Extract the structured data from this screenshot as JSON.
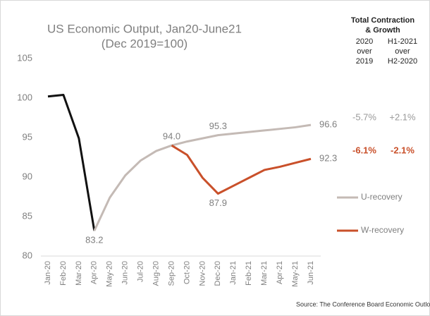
{
  "chart_data": {
    "type": "line",
    "title": "US Economic Output, Jan20-June21",
    "subtitle": "(Dec 2019=100)",
    "categories": [
      "Jan-20",
      "Feb-20",
      "Mar-20",
      "Apr-20",
      "May-20",
      "Jun-20",
      "Jul-20",
      "Aug-20",
      "Sep-20",
      "Oct-20",
      "Nov-20",
      "Dec-20",
      "Jan-21",
      "Feb-21",
      "Mar-21",
      "Apr-21",
      "May-21",
      "Jun-21"
    ],
    "series": [
      {
        "color": "#111111",
        "values": [
          100.2,
          100.4,
          94.9,
          83.2,
          null,
          null,
          null,
          null,
          null,
          null,
          null,
          null,
          null,
          null,
          null,
          null,
          null,
          null
        ]
      },
      {
        "name": "U-recovery",
        "color": "#c4bab5",
        "values": [
          null,
          null,
          null,
          83.2,
          87.4,
          90.2,
          92.1,
          93.3,
          94.0,
          94.5,
          94.9,
          95.3,
          95.5,
          95.7,
          95.9,
          96.1,
          96.3,
          96.6
        ],
        "value_labels": [
          null,
          null,
          null,
          "83.2",
          null,
          null,
          null,
          null,
          "94.0",
          null,
          null,
          "95.3",
          null,
          null,
          null,
          null,
          null,
          "96.6"
        ]
      },
      {
        "name": "W-recovery",
        "color": "#c9502a",
        "values": [
          null,
          null,
          null,
          null,
          null,
          null,
          null,
          null,
          94.0,
          92.8,
          89.9,
          87.9,
          88.9,
          89.9,
          90.9,
          91.3,
          91.8,
          92.3
        ],
        "value_labels": [
          null,
          null,
          null,
          null,
          null,
          null,
          null,
          null,
          null,
          null,
          null,
          "87.9",
          null,
          null,
          null,
          null,
          null,
          "92.3"
        ]
      }
    ],
    "ylim": [
      80,
      105
    ],
    "yticks": [
      80,
      85,
      90,
      95,
      100,
      105
    ],
    "table": {
      "title": [
        "Total Contraction",
        "& Growth"
      ],
      "columns": [
        [
          "2020",
          "over",
          "2019"
        ],
        [
          "H1-2021",
          "over",
          "H2-2020"
        ]
      ],
      "rows": [
        [
          "-5.7%",
          "+2.1%"
        ],
        [
          "-6.1%",
          "-2.1%"
        ]
      ]
    },
    "source": "Source: The Conference Board Economic Outlook"
  }
}
